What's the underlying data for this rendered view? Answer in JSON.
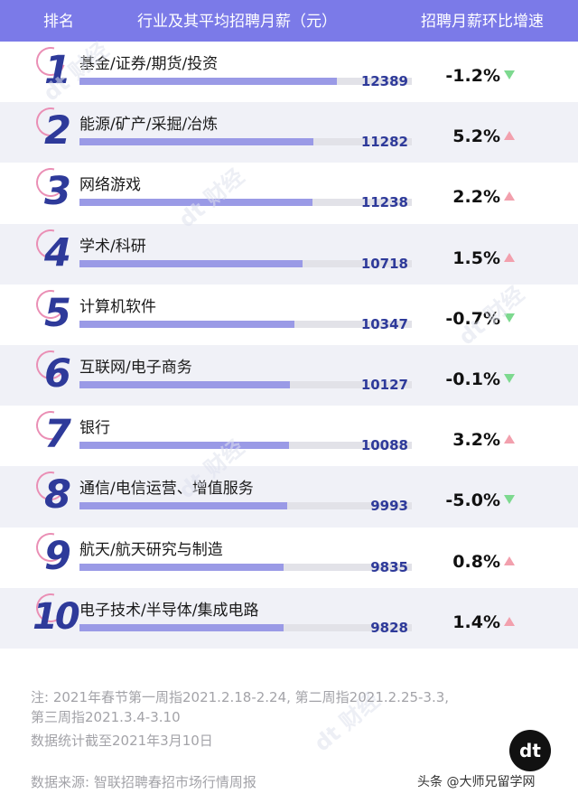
{
  "header": {
    "rank": "排名",
    "industry": "行业及其平均招聘月薪（元）",
    "change": "招聘月薪环比增速"
  },
  "colors": {
    "header_bg": "#7b7ae8",
    "bar": "#9a9ae6",
    "bar_track": "#e2e2e8",
    "rank_blue": "#2e3a9a",
    "up": "#f2a0ad",
    "down": "#7dd98f"
  },
  "chart_data": {
    "type": "bar",
    "orientation": "horizontal",
    "categories": [
      "基金/证券/期货/投资",
      "能源/矿产/采掘/冶炼",
      "网络游戏",
      "学术/科研",
      "计算机软件",
      "互联网/电子商务",
      "银行",
      "通信/电信运营、增值服务",
      "航天/航天研究与制造",
      "电子技术/半导体/集成电路"
    ],
    "ranks": [
      "1",
      "2",
      "3",
      "4",
      "5",
      "6",
      "7",
      "8",
      "9",
      "10"
    ],
    "values": [
      12389,
      11282,
      11238,
      10718,
      10347,
      10127,
      10088,
      9993,
      9835,
      9828
    ],
    "value_labels": [
      "12389",
      "11282",
      "11238",
      "10718",
      "10347",
      "10127",
      "10088",
      "9993",
      "9835",
      "9828"
    ],
    "changes": [
      "-1.2%",
      "5.2%",
      "2.2%",
      "1.5%",
      "-0.7%",
      "-0.1%",
      "3.2%",
      "-5.0%",
      "0.8%",
      "1.4%"
    ],
    "directions": [
      "down",
      "up",
      "up",
      "up",
      "down",
      "down",
      "up",
      "down",
      "up",
      "up"
    ],
    "xlim": [
      0,
      16000
    ]
  },
  "notes": {
    "line1": "注: 2021年春节第一周指2021.2.18-2.24, 第二周指2021.2.25-3.3,",
    "line2": "第三周指2021.3.4-3.10",
    "line3": "数据统计截至2021年3月10日",
    "source": "数据来源: 智联招聘春招市场行情周报"
  },
  "brand": {
    "logo": "dt",
    "watermark": "dt 财经",
    "credit": "头条 @大师兄留学网"
  }
}
